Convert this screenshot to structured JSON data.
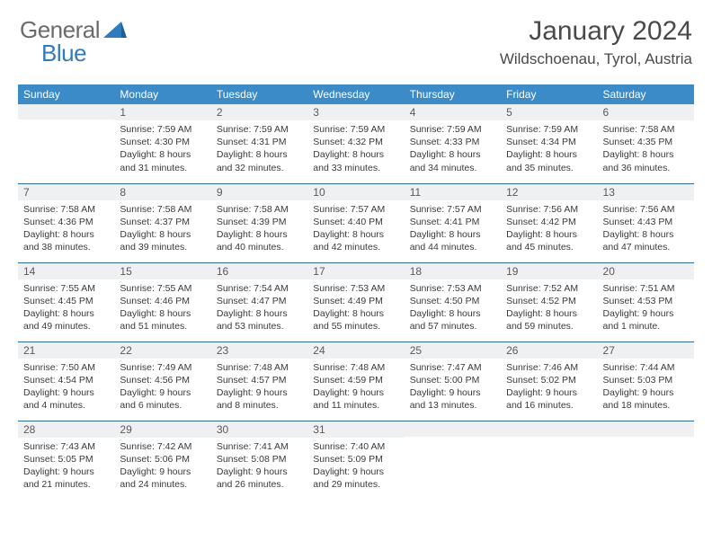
{
  "logo": {
    "part1": "General",
    "part2": "Blue"
  },
  "title": "January 2024",
  "location": "Wildschoenau, Tyrol, Austria",
  "colors": {
    "header_bg": "#3b8bc8",
    "header_text": "#ffffff",
    "daynum_bg": "#eef0f2",
    "border": "#2c6ea3",
    "logo_gray": "#6b6b6b",
    "logo_blue": "#2f7bbf",
    "body_text": "#3a3a3a",
    "title_text": "#4a4a4a"
  },
  "day_names": [
    "Sunday",
    "Monday",
    "Tuesday",
    "Wednesday",
    "Thursday",
    "Friday",
    "Saturday"
  ],
  "weeks": [
    [
      {
        "n": "",
        "sr": "",
        "ss": "",
        "dl": ""
      },
      {
        "n": "1",
        "sr": "Sunrise: 7:59 AM",
        "ss": "Sunset: 4:30 PM",
        "dl": "Daylight: 8 hours and 31 minutes."
      },
      {
        "n": "2",
        "sr": "Sunrise: 7:59 AM",
        "ss": "Sunset: 4:31 PM",
        "dl": "Daylight: 8 hours and 32 minutes."
      },
      {
        "n": "3",
        "sr": "Sunrise: 7:59 AM",
        "ss": "Sunset: 4:32 PM",
        "dl": "Daylight: 8 hours and 33 minutes."
      },
      {
        "n": "4",
        "sr": "Sunrise: 7:59 AM",
        "ss": "Sunset: 4:33 PM",
        "dl": "Daylight: 8 hours and 34 minutes."
      },
      {
        "n": "5",
        "sr": "Sunrise: 7:59 AM",
        "ss": "Sunset: 4:34 PM",
        "dl": "Daylight: 8 hours and 35 minutes."
      },
      {
        "n": "6",
        "sr": "Sunrise: 7:58 AM",
        "ss": "Sunset: 4:35 PM",
        "dl": "Daylight: 8 hours and 36 minutes."
      }
    ],
    [
      {
        "n": "7",
        "sr": "Sunrise: 7:58 AM",
        "ss": "Sunset: 4:36 PM",
        "dl": "Daylight: 8 hours and 38 minutes."
      },
      {
        "n": "8",
        "sr": "Sunrise: 7:58 AM",
        "ss": "Sunset: 4:37 PM",
        "dl": "Daylight: 8 hours and 39 minutes."
      },
      {
        "n": "9",
        "sr": "Sunrise: 7:58 AM",
        "ss": "Sunset: 4:39 PM",
        "dl": "Daylight: 8 hours and 40 minutes."
      },
      {
        "n": "10",
        "sr": "Sunrise: 7:57 AM",
        "ss": "Sunset: 4:40 PM",
        "dl": "Daylight: 8 hours and 42 minutes."
      },
      {
        "n": "11",
        "sr": "Sunrise: 7:57 AM",
        "ss": "Sunset: 4:41 PM",
        "dl": "Daylight: 8 hours and 44 minutes."
      },
      {
        "n": "12",
        "sr": "Sunrise: 7:56 AM",
        "ss": "Sunset: 4:42 PM",
        "dl": "Daylight: 8 hours and 45 minutes."
      },
      {
        "n": "13",
        "sr": "Sunrise: 7:56 AM",
        "ss": "Sunset: 4:43 PM",
        "dl": "Daylight: 8 hours and 47 minutes."
      }
    ],
    [
      {
        "n": "14",
        "sr": "Sunrise: 7:55 AM",
        "ss": "Sunset: 4:45 PM",
        "dl": "Daylight: 8 hours and 49 minutes."
      },
      {
        "n": "15",
        "sr": "Sunrise: 7:55 AM",
        "ss": "Sunset: 4:46 PM",
        "dl": "Daylight: 8 hours and 51 minutes."
      },
      {
        "n": "16",
        "sr": "Sunrise: 7:54 AM",
        "ss": "Sunset: 4:47 PM",
        "dl": "Daylight: 8 hours and 53 minutes."
      },
      {
        "n": "17",
        "sr": "Sunrise: 7:53 AM",
        "ss": "Sunset: 4:49 PM",
        "dl": "Daylight: 8 hours and 55 minutes."
      },
      {
        "n": "18",
        "sr": "Sunrise: 7:53 AM",
        "ss": "Sunset: 4:50 PM",
        "dl": "Daylight: 8 hours and 57 minutes."
      },
      {
        "n": "19",
        "sr": "Sunrise: 7:52 AM",
        "ss": "Sunset: 4:52 PM",
        "dl": "Daylight: 8 hours and 59 minutes."
      },
      {
        "n": "20",
        "sr": "Sunrise: 7:51 AM",
        "ss": "Sunset: 4:53 PM",
        "dl": "Daylight: 9 hours and 1 minute."
      }
    ],
    [
      {
        "n": "21",
        "sr": "Sunrise: 7:50 AM",
        "ss": "Sunset: 4:54 PM",
        "dl": "Daylight: 9 hours and 4 minutes."
      },
      {
        "n": "22",
        "sr": "Sunrise: 7:49 AM",
        "ss": "Sunset: 4:56 PM",
        "dl": "Daylight: 9 hours and 6 minutes."
      },
      {
        "n": "23",
        "sr": "Sunrise: 7:48 AM",
        "ss": "Sunset: 4:57 PM",
        "dl": "Daylight: 9 hours and 8 minutes."
      },
      {
        "n": "24",
        "sr": "Sunrise: 7:48 AM",
        "ss": "Sunset: 4:59 PM",
        "dl": "Daylight: 9 hours and 11 minutes."
      },
      {
        "n": "25",
        "sr": "Sunrise: 7:47 AM",
        "ss": "Sunset: 5:00 PM",
        "dl": "Daylight: 9 hours and 13 minutes."
      },
      {
        "n": "26",
        "sr": "Sunrise: 7:46 AM",
        "ss": "Sunset: 5:02 PM",
        "dl": "Daylight: 9 hours and 16 minutes."
      },
      {
        "n": "27",
        "sr": "Sunrise: 7:44 AM",
        "ss": "Sunset: 5:03 PM",
        "dl": "Daylight: 9 hours and 18 minutes."
      }
    ],
    [
      {
        "n": "28",
        "sr": "Sunrise: 7:43 AM",
        "ss": "Sunset: 5:05 PM",
        "dl": "Daylight: 9 hours and 21 minutes."
      },
      {
        "n": "29",
        "sr": "Sunrise: 7:42 AM",
        "ss": "Sunset: 5:06 PM",
        "dl": "Daylight: 9 hours and 24 minutes."
      },
      {
        "n": "30",
        "sr": "Sunrise: 7:41 AM",
        "ss": "Sunset: 5:08 PM",
        "dl": "Daylight: 9 hours and 26 minutes."
      },
      {
        "n": "31",
        "sr": "Sunrise: 7:40 AM",
        "ss": "Sunset: 5:09 PM",
        "dl": "Daylight: 9 hours and 29 minutes."
      },
      {
        "n": "",
        "sr": "",
        "ss": "",
        "dl": ""
      },
      {
        "n": "",
        "sr": "",
        "ss": "",
        "dl": ""
      },
      {
        "n": "",
        "sr": "",
        "ss": "",
        "dl": ""
      }
    ]
  ]
}
